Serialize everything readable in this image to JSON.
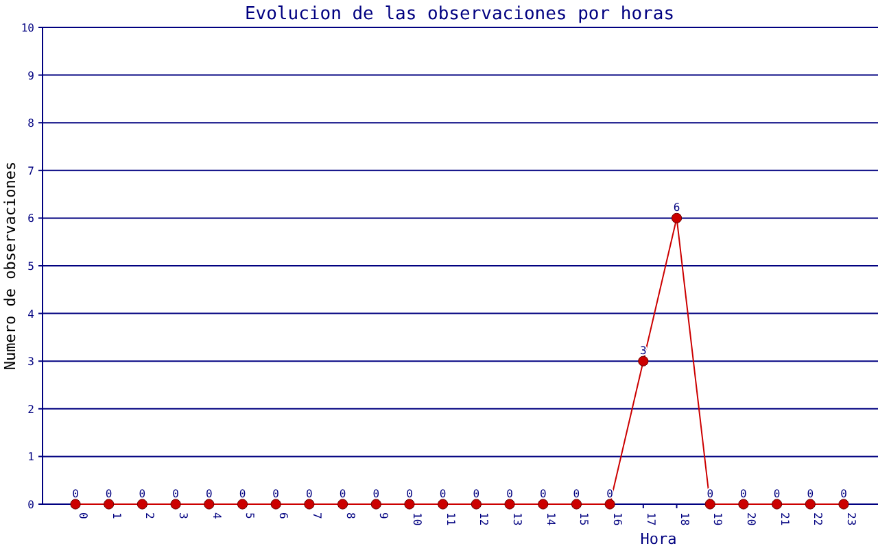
{
  "chart_data": {
    "type": "line",
    "title": "Evolucion de las observaciones por horas",
    "xlabel": "Hora",
    "ylabel": "Numero de observaciones",
    "categories": [
      "0",
      "1",
      "2",
      "3",
      "4",
      "5",
      "6",
      "7",
      "8",
      "9",
      "10",
      "11",
      "12",
      "13",
      "14",
      "15",
      "16",
      "17",
      "18",
      "19",
      "20",
      "21",
      "22",
      "23"
    ],
    "series": [
      {
        "color": "#cc0000",
        "values": [
          0,
          0,
          0,
          0,
          0,
          0,
          0,
          0,
          0,
          0,
          0,
          0,
          0,
          0,
          0,
          0,
          0,
          3,
          6,
          0,
          0,
          0,
          0,
          0
        ]
      }
    ],
    "ylim": [
      0,
      10
    ],
    "yticks": [
      0,
      1,
      2,
      3,
      4,
      5,
      6,
      7,
      8,
      9,
      10
    ],
    "grid": "y",
    "marker": "circle",
    "data_labels": true
  }
}
